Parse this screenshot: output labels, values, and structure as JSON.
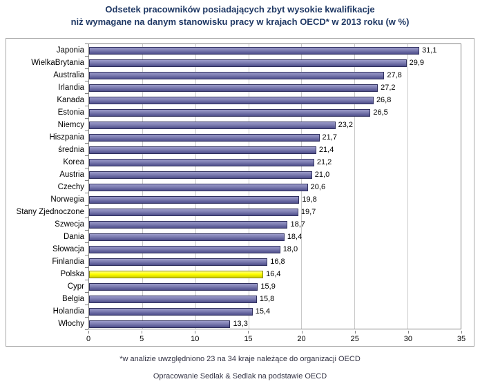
{
  "title": {
    "line1": "Odsetek pracowników posiadających zbyt wysokie kwalifikacje",
    "line2": "niż wymagane na danym stanowisku pracy w krajach OECD* w 2013 roku (w %)"
  },
  "chart_data": {
    "type": "bar",
    "orientation": "horizontal",
    "title": "Odsetek pracowników posiadających zbyt wysokie kwalifikacje niż wymagane na danym stanowisku pracy w krajach OECD* w 2013 roku (w %)",
    "categories": [
      "Japonia",
      "WielkaBrytania",
      "Australia",
      "Irlandia",
      "Kanada",
      "Estonia",
      "Niemcy",
      "Hiszpania",
      "średnia",
      "Korea",
      "Austria",
      "Czechy",
      "Norwegia",
      "Stany Zjednoczone",
      "Szwecja",
      "Dania",
      "Słowacja",
      "Finlandia",
      "Polska",
      "Cypr",
      "Belgia",
      "Holandia",
      "Włochy"
    ],
    "values": [
      31.1,
      29.9,
      27.8,
      27.2,
      26.8,
      26.5,
      23.2,
      21.7,
      21.4,
      21.2,
      21.0,
      20.6,
      19.8,
      19.7,
      18.7,
      18.4,
      18.0,
      16.8,
      16.4,
      15.9,
      15.8,
      15.4,
      13.3
    ],
    "value_labels": [
      "31,1",
      "29,9",
      "27,8",
      "27,2",
      "26,8",
      "26,5",
      "23,2",
      "21,7",
      "21,4",
      "21,2",
      "21,0",
      "20,6",
      "19,8",
      "19,7",
      "18,7",
      "18,4",
      "18,0",
      "16,8",
      "16,4",
      "15,9",
      "15,8",
      "15,4",
      "13,3"
    ],
    "highlight_category": "Polska",
    "xlim": [
      0,
      35
    ],
    "x_ticks": [
      0,
      5,
      10,
      15,
      20,
      25,
      30,
      35
    ],
    "grid": true,
    "legend": "none",
    "colors": {
      "bar": "#6A6AA3",
      "bar_highlight": "#FFFF00",
      "title": "#1F3864",
      "gridline": "#C9C9C9",
      "plot_border": "#808080"
    }
  },
  "footnotes": {
    "note1": "*w analizie uwzględniono 23 na 34 kraje należące do organizacji OECD",
    "note2": "Opracowanie Sedlak & Sedlak na podstawie OECD"
  }
}
